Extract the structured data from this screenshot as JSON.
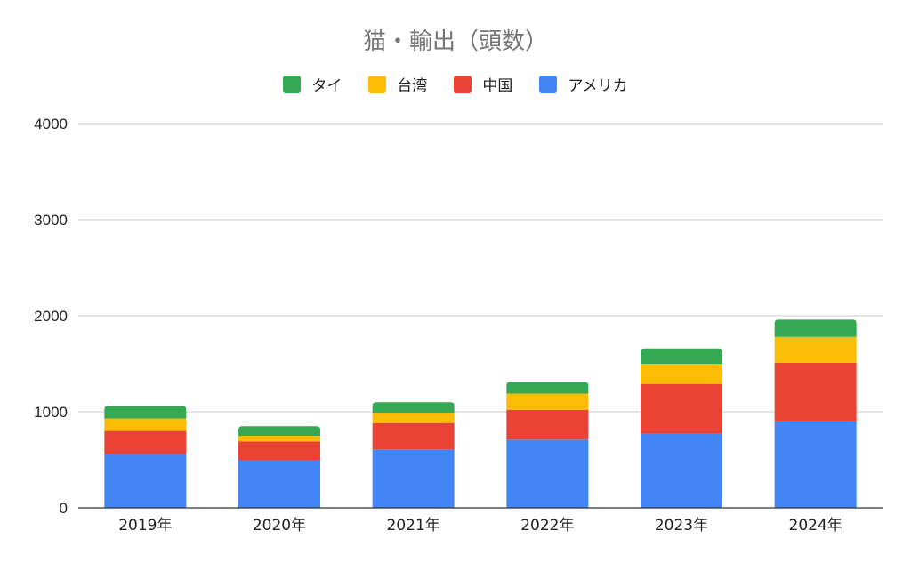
{
  "chart_data": {
    "type": "bar",
    "stacked": true,
    "title": "猫・輸出（頭数）",
    "xlabel": "",
    "ylabel": "",
    "categories": [
      "2019年",
      "2020年",
      "2021年",
      "2022年",
      "2023年",
      "2024年"
    ],
    "y_ticks": [
      "0",
      "1000",
      "2000",
      "3000",
      "4000"
    ],
    "ylim": [
      0,
      4000
    ],
    "grid": true,
    "legend_position": "top",
    "legend_order": [
      "タイ",
      "台湾",
      "中国",
      "アメリカ"
    ],
    "series": [
      {
        "name": "アメリカ",
        "color": "#4285F4",
        "values": [
          560,
          500,
          610,
          710,
          770,
          900
        ]
      },
      {
        "name": "中国",
        "color": "#EA4335",
        "values": [
          240,
          190,
          270,
          310,
          520,
          610
        ]
      },
      {
        "name": "台湾",
        "color": "#FBBC04",
        "values": [
          130,
          60,
          110,
          170,
          210,
          270
        ]
      },
      {
        "name": "タイ",
        "color": "#34A853",
        "values": [
          130,
          100,
          110,
          120,
          160,
          180
        ]
      }
    ]
  }
}
